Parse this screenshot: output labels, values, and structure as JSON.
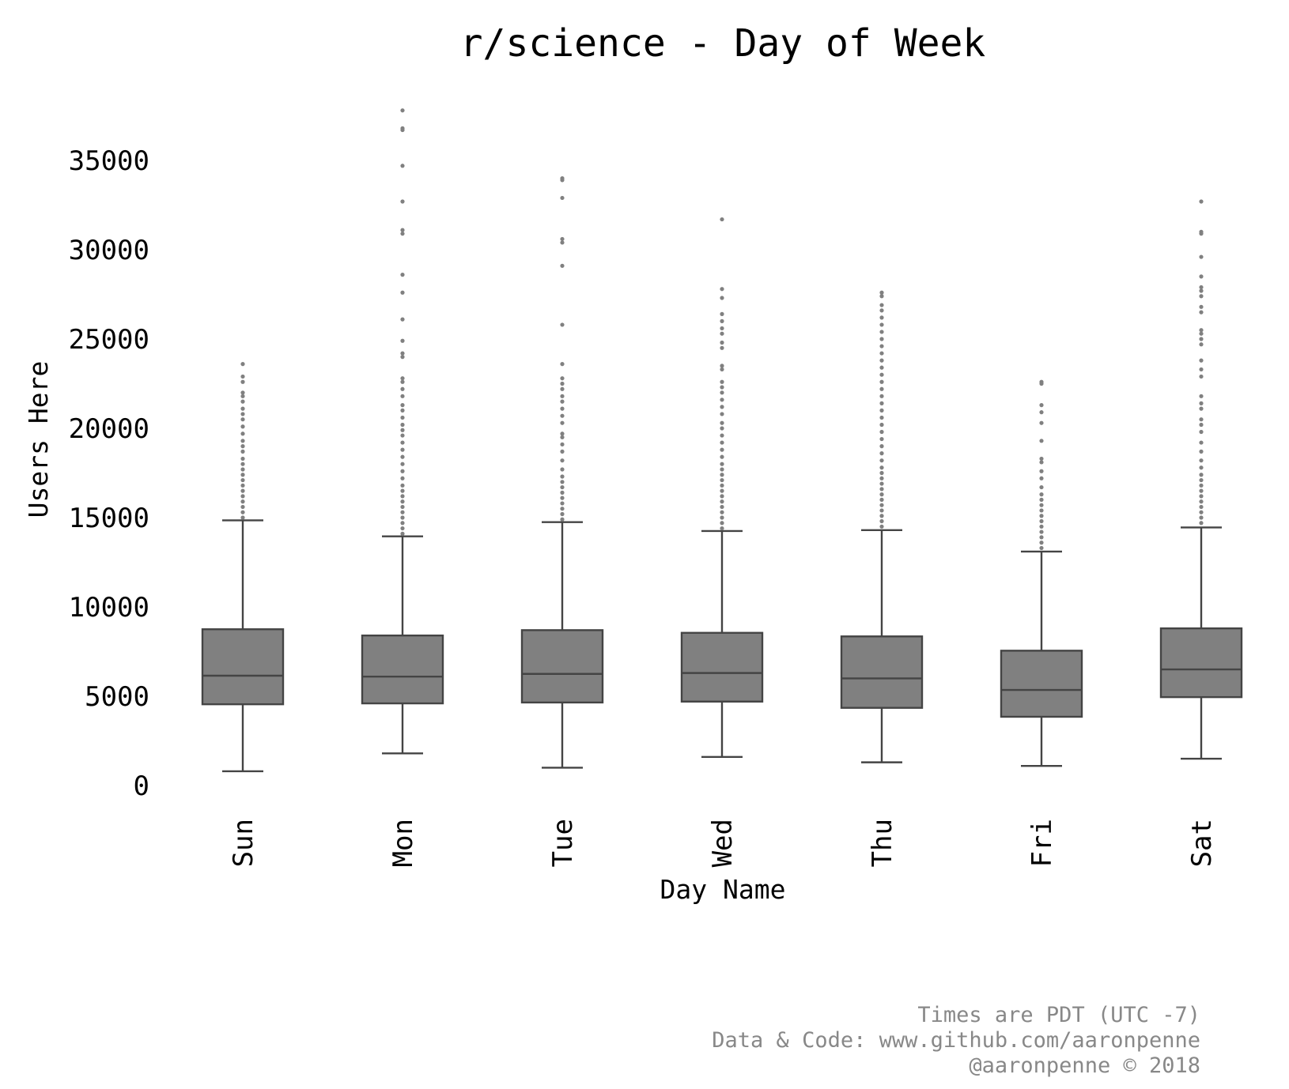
{
  "chart_data": {
    "type": "box",
    "title": "r/science - Day of Week",
    "xlabel": "Day Name",
    "ylabel": "Users Here",
    "categories": [
      "Sun",
      "Mon",
      "Tue",
      "Wed",
      "Thu",
      "Fri",
      "Sat"
    ],
    "yticks": [
      0,
      5000,
      10000,
      15000,
      20000,
      25000,
      30000,
      35000
    ],
    "ylim": [
      -800,
      39500
    ],
    "grid": false,
    "legend": "none",
    "box_color": "#808080",
    "line_color": "#444444",
    "flier_color": "#808080",
    "boxes": [
      {
        "name": "Sun",
        "whislo": 800,
        "q1": 4550,
        "med": 6150,
        "q3": 8750,
        "whishi": 14850,
        "fliers": [
          15000,
          15300,
          15600,
          15900,
          16200,
          16500,
          16800,
          17100,
          17400,
          17700,
          18000,
          18300,
          18700,
          19000,
          19300,
          19700,
          20100,
          20500,
          20800,
          21100,
          21500,
          21800,
          22000,
          22600,
          22900,
          23600
        ]
      },
      {
        "name": "Mon",
        "whislo": 1800,
        "q1": 4600,
        "med": 6100,
        "q3": 8400,
        "whishi": 13950,
        "fliers": [
          14100,
          14400,
          14700,
          15000,
          15300,
          15600,
          15900,
          16200,
          16500,
          16800,
          17200,
          17600,
          18000,
          18400,
          18800,
          19200,
          19600,
          19900,
          20200,
          20600,
          21000,
          21300,
          21800,
          22200,
          22600,
          22800,
          24000,
          24200,
          24900,
          26100,
          27600,
          28600,
          30900,
          31100,
          32700,
          34700,
          36700,
          36800,
          37800
        ]
      },
      {
        "name": "Tue",
        "whislo": 1000,
        "q1": 4650,
        "med": 6250,
        "q3": 8700,
        "whishi": 14750,
        "fliers": [
          14900,
          15200,
          15500,
          15800,
          16100,
          16400,
          16700,
          17000,
          17300,
          17700,
          18200,
          18700,
          19100,
          19500,
          19700,
          20300,
          20700,
          21100,
          21500,
          21800,
          22200,
          22500,
          22800,
          23600,
          25800,
          29100,
          30400,
          30600,
          32900,
          33900,
          34000
        ]
      },
      {
        "name": "Wed",
        "whislo": 1600,
        "q1": 4700,
        "med": 6300,
        "q3": 8550,
        "whishi": 14250,
        "fliers": [
          14400,
          14700,
          15000,
          15300,
          15600,
          15900,
          16200,
          16500,
          16800,
          17100,
          17400,
          17700,
          18000,
          18400,
          18800,
          19200,
          19600,
          20000,
          20300,
          20800,
          21200,
          21600,
          22000,
          22300,
          22600,
          23300,
          23500,
          24500,
          24800,
          25300,
          25600,
          26000,
          26400,
          27300,
          27800,
          31700
        ]
      },
      {
        "name": "Thu",
        "whislo": 1300,
        "q1": 4350,
        "med": 6000,
        "q3": 8350,
        "whishi": 14300,
        "fliers": [
          14500,
          14800,
          15100,
          15400,
          15700,
          16000,
          16300,
          16600,
          16900,
          17200,
          17500,
          17800,
          18200,
          18600,
          19000,
          19400,
          19800,
          20200,
          20600,
          21000,
          21400,
          21800,
          22200,
          22600,
          23000,
          23400,
          23800,
          24200,
          24600,
          25000,
          25400,
          25800,
          26200,
          26600,
          26900,
          27400,
          27600
        ]
      },
      {
        "name": "Fri",
        "whislo": 1100,
        "q1": 3850,
        "med": 5350,
        "q3": 7550,
        "whishi": 13100,
        "fliers": [
          13300,
          13600,
          13900,
          14200,
          14500,
          14800,
          15100,
          15400,
          15700,
          16000,
          16300,
          16700,
          17200,
          17600,
          18100,
          18300,
          19300,
          20300,
          20900,
          21300,
          22500,
          22600
        ]
      },
      {
        "name": "Sat",
        "whislo": 1500,
        "q1": 4950,
        "med": 6500,
        "q3": 8800,
        "whishi": 14450,
        "fliers": [
          14700,
          15000,
          15300,
          15600,
          15900,
          16200,
          16500,
          16800,
          17100,
          17400,
          17800,
          18200,
          18700,
          19200,
          19800,
          20200,
          20500,
          21100,
          21400,
          21800,
          22900,
          23300,
          23800,
          24700,
          25000,
          25300,
          25500,
          26500,
          26800,
          27400,
          27700,
          27900,
          28500,
          29600,
          30900,
          31000,
          32700
        ]
      }
    ]
  },
  "footer": {
    "line1": "Times are PDT (UTC -7)",
    "line2": "Data & Code: www.github.com/aaronpenne",
    "line3": "@aaronpenne © 2018"
  }
}
